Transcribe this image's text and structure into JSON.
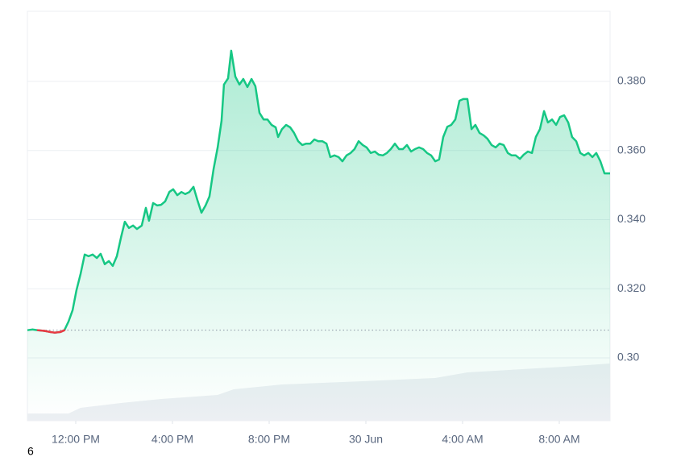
{
  "chart_data": {
    "type": "line",
    "x": [
      10,
      10.2,
      10.43,
      10.7,
      10.93,
      11.13,
      11.37,
      11.53,
      11.7,
      11.87,
      12.03,
      12.2,
      12.37,
      12.53,
      12.7,
      12.87,
      13.03,
      13.2,
      13.37,
      13.53,
      13.7,
      13.87,
      14.03,
      14.2,
      14.37,
      14.53,
      14.73,
      14.9,
      15.03,
      15.2,
      15.37,
      15.53,
      15.7,
      15.87,
      16.03,
      16.2,
      16.37,
      16.53,
      16.7,
      16.87,
      17.03,
      17.2,
      17.37,
      17.53,
      17.7,
      17.87,
      18.03,
      18.13,
      18.3,
      18.43,
      18.6,
      18.77,
      18.93,
      19.1,
      19.27,
      19.43,
      19.6,
      19.77,
      19.93,
      20.1,
      20.27,
      20.37,
      20.53,
      20.7,
      20.87,
      21.03,
      21.2,
      21.37,
      21.53,
      21.7,
      21.87,
      22.03,
      22.2,
      22.37,
      22.53,
      22.7,
      22.87,
      23.03,
      23.2,
      23.37,
      23.53,
      23.7,
      23.87,
      24.03,
      24.2,
      24.37,
      24.53,
      24.7,
      24.87,
      25.03,
      25.2,
      25.37,
      25.53,
      25.7,
      25.87,
      26.03,
      26.2,
      26.37,
      26.53,
      26.7,
      26.87,
      27.03,
      27.2,
      27.37,
      27.53,
      27.7,
      27.87,
      28.03,
      28.2,
      28.37,
      28.53,
      28.7,
      28.87,
      29.03,
      29.2,
      29.37,
      29.53,
      29.7,
      29.87,
      30.03,
      30.2,
      30.37,
      30.53,
      30.7,
      30.87,
      31.03,
      31.2,
      31.37,
      31.53,
      31.7,
      31.87,
      32.03,
      32.2,
      32.37,
      32.53,
      32.7,
      32.87,
      33.03,
      33.2,
      33.37,
      33.53,
      33.7,
      33.87,
      34.1
    ],
    "values": [
      0.308,
      0.3082,
      0.308,
      0.3078,
      0.3075,
      0.3073,
      0.3075,
      0.308,
      0.3105,
      0.3138,
      0.3196,
      0.3243,
      0.3299,
      0.3294,
      0.3299,
      0.3289,
      0.3301,
      0.3271,
      0.328,
      0.3266,
      0.3294,
      0.3348,
      0.3394,
      0.3376,
      0.3383,
      0.3373,
      0.3383,
      0.3434,
      0.3397,
      0.3448,
      0.3441,
      0.3443,
      0.3453,
      0.348,
      0.3488,
      0.3471,
      0.348,
      0.3474,
      0.348,
      0.3495,
      0.3457,
      0.342,
      0.3441,
      0.3467,
      0.3546,
      0.3609,
      0.3686,
      0.3791,
      0.3809,
      0.3889,
      0.3814,
      0.3791,
      0.3807,
      0.3784,
      0.3807,
      0.3786,
      0.3709,
      0.369,
      0.369,
      0.3674,
      0.3667,
      0.3639,
      0.3662,
      0.3674,
      0.3667,
      0.3651,
      0.3627,
      0.3616,
      0.362,
      0.362,
      0.3632,
      0.3627,
      0.3627,
      0.362,
      0.3581,
      0.3586,
      0.3581,
      0.3569,
      0.3586,
      0.3593,
      0.3604,
      0.3627,
      0.3616,
      0.3609,
      0.3593,
      0.3597,
      0.3588,
      0.3586,
      0.3593,
      0.3604,
      0.362,
      0.3604,
      0.3604,
      0.3616,
      0.3597,
      0.3604,
      0.3609,
      0.3604,
      0.3593,
      0.3586,
      0.3569,
      0.3574,
      0.3639,
      0.3669,
      0.3674,
      0.369,
      0.3744,
      0.3749,
      0.3749,
      0.3662,
      0.3674,
      0.3651,
      0.3644,
      0.3634,
      0.3616,
      0.3609,
      0.362,
      0.3616,
      0.3593,
      0.3586,
      0.3586,
      0.3576,
      0.3588,
      0.3597,
      0.3593,
      0.3639,
      0.3662,
      0.3714,
      0.3681,
      0.369,
      0.3674,
      0.3697,
      0.3702,
      0.3681,
      0.3639,
      0.3627,
      0.3593,
      0.3586,
      0.3593,
      0.3581,
      0.3593,
      0.3569,
      0.3534,
      0.3534
    ],
    "color": "#16c784",
    "down_color": "#ea3943",
    "baseline": 0.308,
    "xlim": [
      10,
      34.1
    ],
    "xticks": [
      {
        "value": 12,
        "label": "12:00 PM"
      },
      {
        "value": 16,
        "label": "4:00 PM"
      },
      {
        "value": 20,
        "label": "8:00 PM"
      },
      {
        "value": 24,
        "label": "30 Jun"
      },
      {
        "value": 28,
        "label": "4:00 AM"
      },
      {
        "value": 32,
        "label": "8:00 AM"
      }
    ],
    "ylim": [
      0.2818,
      0.4003
    ],
    "yticks": [
      {
        "value": 0.3,
        "label": "0.30"
      },
      {
        "value": 0.32,
        "label": "0.320"
      },
      {
        "value": 0.34,
        "label": "0.340"
      },
      {
        "value": 0.36,
        "label": "0.360"
      },
      {
        "value": 0.38,
        "label": "0.380"
      }
    ],
    "grid": true
  },
  "corner_label": "6"
}
